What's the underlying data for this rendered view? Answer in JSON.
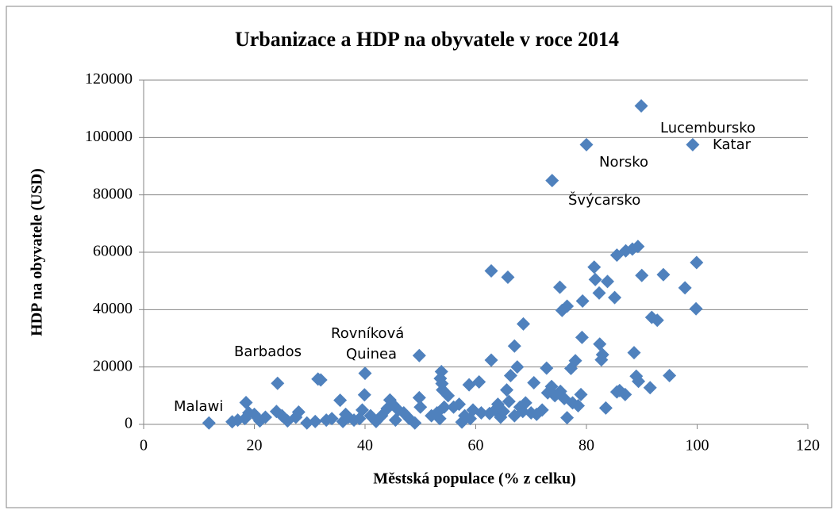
{
  "chart_data": {
    "type": "scatter",
    "title": "Urbanizace a HDP na obyvatele v roce 2014",
    "x_label": "Městská populace (% z celku)",
    "y_label": "HDP na obyvatele (USD)",
    "color": "#4f81bd",
    "grid": true,
    "xlim": [
      0,
      120
    ],
    "xticks": [
      0,
      20,
      40,
      60,
      80,
      100,
      120
    ],
    "ylim": [
      0,
      120000
    ],
    "yticks": [
      0,
      20000,
      40000,
      60000,
      80000,
      100000,
      120000
    ],
    "annotations": [
      "Lucembursko",
      "Katar",
      "Norsko",
      "Švýcarsko",
      "Rovníková",
      "Quinea",
      "Barbados",
      "Malawi"
    ],
    "x": [
      89.9,
      99.2,
      80,
      73.8,
      49.8,
      24.2,
      11.8,
      62.8,
      65.8,
      75.2,
      75.6,
      76.5,
      79.3,
      81.4,
      81.6,
      82.3,
      83.8,
      85.1,
      85.5,
      87.1,
      88.3,
      89.3,
      90.0,
      93.9,
      97.8,
      99.9,
      99.8,
      91.8,
      92.8,
      79.2,
      82.4,
      82.9,
      82.7,
      88.6,
      89.0,
      89.4,
      95.0,
      91.5,
      86.0,
      87.0,
      85.5,
      83.5,
      76.5,
      77.2,
      78.0,
      72.8,
      68.6,
      67.0,
      67.5,
      66.3,
      65.6,
      62.8,
      73.7,
      73.0,
      74.3,
      75.3,
      76.0,
      78.5,
      79.0,
      77.5,
      70.5,
      68.0,
      69.0,
      70,
      72,
      71,
      66,
      64,
      63.5,
      62.5,
      64.5,
      65,
      67,
      68.5,
      60.6,
      58.8,
      59.5,
      58,
      57,
      56,
      55,
      54,
      53.8,
      53.6,
      53.9,
      54.3,
      53,
      53.5,
      52,
      50,
      49.8,
      49,
      48,
      47,
      46,
      45,
      44.5,
      44,
      43,
      42,
      40,
      39.9,
      39.5,
      39,
      38,
      37,
      36,
      35.5,
      34,
      33,
      32,
      31.5,
      31,
      29.5,
      28,
      27.5,
      26,
      25,
      24,
      22,
      21,
      20,
      19,
      18.5,
      18.3,
      17,
      16,
      57.5,
      59,
      61,
      45.5,
      41,
      36.5
    ],
    "values": [
      111000,
      97500,
      97500,
      85000,
      24000,
      14300,
      500,
      53500,
      51300,
      47800,
      39700,
      41200,
      43000,
      54800,
      50500,
      45800,
      49800,
      44200,
      59000,
      60500,
      61100,
      62000,
      51900,
      52200,
      47600,
      56400,
      40300,
      37300,
      36300,
      30300,
      28000,
      24300,
      22500,
      25000,
      16800,
      15000,
      17000,
      12800,
      11800,
      10400,
      11300,
      5700,
      2300,
      19500,
      22200,
      19600,
      35000,
      27300,
      20000,
      17000,
      12000,
      22400,
      13200,
      11000,
      10000,
      11500,
      9000,
      6500,
      10400,
      7500,
      14500,
      6000,
      7500,
      4000,
      5000,
      3500,
      8000,
      7000,
      5000,
      3800,
      2500,
      4500,
      3000,
      4500,
      14800,
      13800,
      5000,
      3000,
      7000,
      6000,
      10000,
      12000,
      18400,
      16000,
      14200,
      6000,
      4000,
      2000,
      3000,
      6000,
      9300,
      500,
      2000,
      4000,
      5000,
      7000,
      8500,
      5500,
      3000,
      1000,
      17800,
      10300,
      5000,
      2000,
      1500,
      2500,
      1000,
      8400,
      2000,
      1500,
      15500,
      15800,
      1000,
      500,
      4300,
      2500,
      1200,
      3000,
      4500,
      2500,
      1200,
      3500,
      4000,
      7600,
      2000,
      1500,
      900,
      800,
      2000,
      4000,
      1500,
      3000,
      3500
    ]
  }
}
